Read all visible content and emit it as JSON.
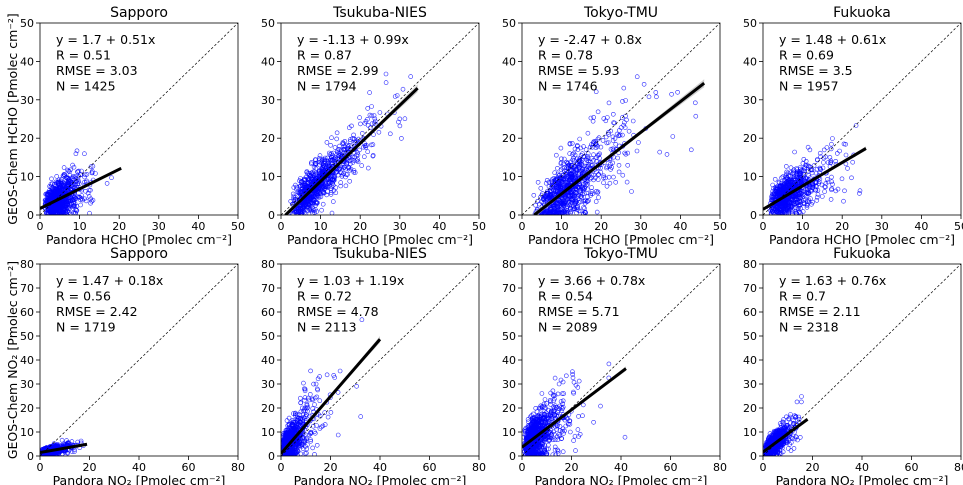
{
  "chart_data": [
    {
      "type": "scatter",
      "title": "Sapporo",
      "xlabel": "Pandora HCHO [Pmolec cm⁻²]",
      "ylabel": "GEOS-Chem HCHO [Pmolec cm⁻²]",
      "xlim": [
        0,
        50
      ],
      "ylim": [
        0,
        50
      ],
      "xticks": [
        0,
        10,
        20,
        30,
        40,
        50
      ],
      "yticks": [
        0,
        10,
        20,
        30,
        40,
        50
      ],
      "stats": [
        "y = 1.7 + 0.51x",
        "R = 0.51",
        "RMSE = 3.03",
        "N = 1425"
      ],
      "fit": {
        "intercept": 1.7,
        "slope": 0.51,
        "x_range": [
          0,
          20.5
        ]
      },
      "points": {
        "n": 1425,
        "x_mean": 5.2,
        "x_sd": 2.6,
        "x_max": 20,
        "resid_sd": 2.5
      }
    },
    {
      "type": "scatter",
      "title": "Tsukuba-NIES",
      "xlabel": "Pandora HCHO [Pmolec cm⁻²]",
      "ylabel": "",
      "xlim": [
        0,
        50
      ],
      "ylim": [
        0,
        50
      ],
      "xticks": [
        0,
        10,
        20,
        30,
        40,
        50
      ],
      "yticks": [
        0,
        10,
        20,
        30,
        40,
        50
      ],
      "stats": [
        "y = -1.13 + 0.99x",
        "R = 0.87",
        "RMSE = 2.99",
        "N = 1794"
      ],
      "fit": {
        "intercept": -1.13,
        "slope": 0.99,
        "x_range": [
          1.1,
          34.5
        ]
      },
      "points": {
        "n": 1794,
        "x_mean": 10.5,
        "x_sd": 5.2,
        "x_max": 34,
        "resid_sd": 2.8
      }
    },
    {
      "type": "scatter",
      "title": "Tokyo-TMU",
      "xlabel": "Pandora HCHO [Pmolec cm⁻²]",
      "ylabel": "",
      "xlim": [
        0,
        50
      ],
      "ylim": [
        0,
        50
      ],
      "xticks": [
        0,
        10,
        20,
        30,
        40,
        50
      ],
      "yticks": [
        0,
        10,
        20,
        30,
        40,
        50
      ],
      "stats": [
        "y = -2.47 + 0.8x",
        "R = 0.78",
        "RMSE = 5.93",
        "N = 1746"
      ],
      "fit": {
        "intercept": -2.47,
        "slope": 0.8,
        "x_range": [
          3.1,
          46
        ]
      },
      "points": {
        "n": 1746,
        "x_mean": 13,
        "x_sd": 5.8,
        "x_max": 46,
        "resid_sd": 4.2
      }
    },
    {
      "type": "scatter",
      "title": "Fukuoka",
      "xlabel": "Pandora HCHO [Pmolec cm⁻²]",
      "ylabel": "",
      "xlim": [
        0,
        50
      ],
      "ylim": [
        0,
        50
      ],
      "xticks": [
        0,
        10,
        20,
        30,
        40,
        50
      ],
      "yticks": [
        0,
        10,
        20,
        30,
        40,
        50
      ],
      "stats": [
        "y = 1.48 + 0.61x",
        "R = 0.69",
        "RMSE = 3.5",
        "N = 1957"
      ],
      "fit": {
        "intercept": 1.48,
        "slope": 0.61,
        "x_range": [
          0,
          26
        ]
      },
      "points": {
        "n": 1957,
        "x_mean": 7.5,
        "x_sd": 4.0,
        "x_max": 26,
        "resid_sd": 2.6
      }
    },
    {
      "type": "scatter",
      "title": "Sapporo",
      "xlabel": "Pandora NO₂ [Pmolec cm⁻²]",
      "ylabel": "GEOS-Chem NO₂ [Pmolec cm⁻²]",
      "xlim": [
        0,
        80
      ],
      "ylim": [
        0,
        80
      ],
      "xticks": [
        0,
        20,
        40,
        60,
        80
      ],
      "yticks": [
        0,
        10,
        20,
        30,
        40,
        50,
        60,
        70,
        80
      ],
      "stats": [
        "y = 1.47 + 0.18x",
        "R = 0.56",
        "RMSE = 2.42",
        "N = 1719"
      ],
      "fit": {
        "intercept": 1.47,
        "slope": 0.18,
        "x_range": [
          0,
          19
        ]
      },
      "points": {
        "n": 1719,
        "x_mean": 4.5,
        "x_sd": 3.0,
        "x_max": 18,
        "resid_sd": 0.8
      }
    },
    {
      "type": "scatter",
      "title": "Tsukuba-NIES",
      "xlabel": "Pandora NO₂ [Pmolec cm⁻²]",
      "ylabel": "",
      "xlim": [
        0,
        80
      ],
      "ylim": [
        0,
        80
      ],
      "xticks": [
        0,
        20,
        40,
        60,
        80
      ],
      "yticks": [
        0,
        10,
        20,
        30,
        40,
        50,
        60,
        70,
        80
      ],
      "stats": [
        "y = 1.03 + 1.19x",
        "R = 0.72",
        "RMSE = 4.78",
        "N = 2113"
      ],
      "fit": {
        "intercept": 1.03,
        "slope": 1.19,
        "x_range": [
          0,
          40
        ]
      },
      "points": {
        "n": 2113,
        "x_mean": 4.5,
        "x_sd": 3.8,
        "x_max": 38,
        "resid_sd": 4.0
      }
    },
    {
      "type": "scatter",
      "title": "Tokyo-TMU",
      "xlabel": "Pandora NO₂ [Pmolec cm⁻²]",
      "ylabel": "",
      "xlim": [
        0,
        80
      ],
      "ylim": [
        0,
        80
      ],
      "xticks": [
        0,
        20,
        40,
        60,
        80
      ],
      "yticks": [
        0,
        10,
        20,
        30,
        40,
        50,
        60,
        70,
        80
      ],
      "stats": [
        "y = 3.66 + 0.78x",
        "R = 0.54",
        "RMSE = 5.71",
        "N = 2089"
      ],
      "fit": {
        "intercept": 3.66,
        "slope": 0.78,
        "x_range": [
          0,
          42
        ]
      },
      "points": {
        "n": 2089,
        "x_mean": 7.0,
        "x_sd": 5.0,
        "x_max": 42,
        "resid_sd": 5.0
      }
    },
    {
      "type": "scatter",
      "title": "Fukuoka",
      "xlabel": "Pandora NO₂ [Pmolec cm⁻²]",
      "ylabel": "",
      "xlim": [
        0,
        80
      ],
      "ylim": [
        0,
        80
      ],
      "xticks": [
        0,
        20,
        40,
        60,
        80
      ],
      "yticks": [
        0,
        10,
        20,
        30,
        40,
        50,
        60,
        70,
        80
      ],
      "stats": [
        "y = 1.63 + 0.76x",
        "R = 0.7",
        "RMSE = 2.11",
        "N = 2318"
      ],
      "fit": {
        "intercept": 1.63,
        "slope": 0.76,
        "x_range": [
          0,
          18
        ]
      },
      "points": {
        "n": 2318,
        "x_mean": 4.5,
        "x_sd": 2.8,
        "x_max": 17,
        "resid_sd": 2.0
      }
    }
  ],
  "style": {
    "point_color": "#0000ff",
    "fit_color": "#000000",
    "band_color": "#bdbdbd",
    "one_to_one_color": "#000000"
  }
}
